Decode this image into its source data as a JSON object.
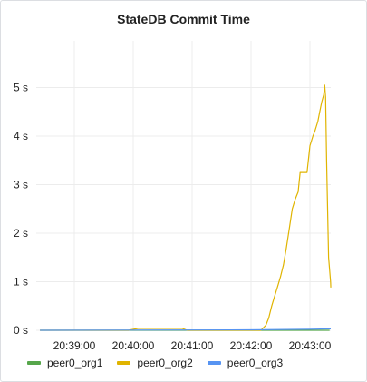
{
  "panel": {
    "title": "StateDB Commit Time"
  },
  "chart_data": {
    "type": "line",
    "title": "StateDB Commit Time",
    "xlabel": "",
    "ylabel": "",
    "y_unit": "s",
    "ylim": [
      0,
      5.5
    ],
    "y_ticks": [
      0,
      1,
      2,
      3,
      4,
      5
    ],
    "y_tick_labels": [
      "0 s",
      "1 s",
      "2 s",
      "3 s",
      "4 s",
      "5 s"
    ],
    "xlim": [
      "20:38:25",
      "20:43:20"
    ],
    "x_ticks": [
      "20:39:00",
      "20:40:00",
      "20:41:00",
      "20:42:00",
      "20:43:00"
    ],
    "grid": true,
    "legend_position": "bottom-left",
    "series": [
      {
        "name": "peer0_org1",
        "color": "#56a64b",
        "points": [
          [
            "20:38:25",
            0.0
          ],
          [
            "20:43:20",
            0.0
          ]
        ]
      },
      {
        "name": "peer0_org2",
        "color": "#e0b400",
        "points": [
          [
            "20:38:25",
            0.0
          ],
          [
            "20:39:55",
            0.0
          ],
          [
            "20:40:05",
            0.04
          ],
          [
            "20:40:50",
            0.04
          ],
          [
            "20:40:55",
            0.0
          ],
          [
            "20:42:10",
            0.0
          ],
          [
            "20:42:15",
            0.1
          ],
          [
            "20:42:18",
            0.25
          ],
          [
            "20:42:21",
            0.5
          ],
          [
            "20:42:24",
            0.7
          ],
          [
            "20:42:27",
            0.9
          ],
          [
            "20:42:30",
            1.1
          ],
          [
            "20:42:33",
            1.35
          ],
          [
            "20:42:36",
            1.7
          ],
          [
            "20:42:39",
            2.1
          ],
          [
            "20:42:42",
            2.5
          ],
          [
            "20:42:45",
            2.7
          ],
          [
            "20:42:48",
            2.85
          ],
          [
            "20:42:50",
            3.25
          ],
          [
            "20:42:57",
            3.25
          ],
          [
            "20:43:00",
            3.8
          ],
          [
            "20:43:03",
            4.0
          ],
          [
            "20:43:05",
            4.1
          ],
          [
            "20:43:08",
            4.3
          ],
          [
            "20:43:10",
            4.5
          ],
          [
            "20:43:12",
            4.7
          ],
          [
            "20:43:14",
            4.85
          ],
          [
            "20:43:15",
            5.05
          ],
          [
            "20:43:16",
            4.8
          ],
          [
            "20:43:17",
            3.5
          ],
          [
            "20:43:18",
            2.5
          ],
          [
            "20:43:19",
            1.5
          ],
          [
            "20:43:21",
            1.0
          ],
          [
            "20:43:23",
            0.9
          ],
          [
            "20:43:26",
            0.88
          ],
          [
            "20:43:30",
            0.88
          ]
        ]
      },
      {
        "name": "peer0_org3",
        "color": "#5794f2",
        "points": [
          [
            "20:38:25",
            0.0
          ],
          [
            "20:42:00",
            0.01
          ],
          [
            "20:43:00",
            0.02
          ],
          [
            "20:43:30",
            0.03
          ]
        ]
      }
    ]
  }
}
